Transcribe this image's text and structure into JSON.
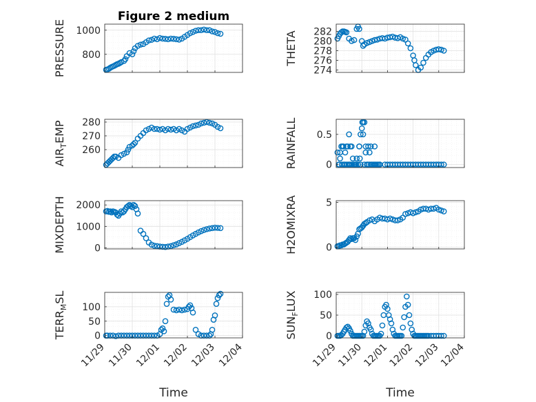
{
  "colors": {
    "marker": "#0072BD",
    "axes": "#262626",
    "grid": "#DFDFDF",
    "minorGrid": "#EDEDED"
  },
  "chart_data": [
    {
      "id": "pressure",
      "type": "scatter",
      "title": "Figure 2 medium",
      "ylabel": "PRESSURE",
      "xlabel": "",
      "xlim": [
        0,
        5
      ],
      "ylim": [
        650,
        1050
      ],
      "yticks": [
        800,
        1000
      ],
      "yticklabels": [
        "800",
        "1000"
      ],
      "xticks": [
        0,
        1,
        2,
        3,
        4,
        5
      ],
      "xticklabels": [],
      "x": [
        0.05,
        0.1,
        0.15,
        0.2,
        0.25,
        0.3,
        0.35,
        0.4,
        0.45,
        0.5,
        0.55,
        0.6,
        0.7,
        0.75,
        0.8,
        0.9,
        1.0,
        1.05,
        1.1,
        1.2,
        1.3,
        1.4,
        1.5,
        1.6,
        1.7,
        1.8,
        1.9,
        2.0,
        2.1,
        2.2,
        2.3,
        2.4,
        2.5,
        2.6,
        2.7,
        2.8,
        2.9,
        3.0,
        3.1,
        3.2,
        3.3,
        3.4,
        3.5,
        3.6,
        3.7,
        3.8,
        3.9,
        4.0,
        4.1,
        4.2
      ],
      "y": [
        672,
        675,
        680,
        688,
        695,
        700,
        705,
        712,
        718,
        722,
        728,
        735,
        745,
        760,
        785,
        810,
        800,
        825,
        850,
        870,
        880,
        885,
        900,
        915,
        920,
        930,
        925,
        935,
        930,
        928,
        925,
        930,
        928,
        925,
        922,
        930,
        945,
        960,
        975,
        985,
        995,
        1000,
        1000,
        1005,
        1000,
        1000,
        990,
        985,
        975,
        970
      ]
    },
    {
      "id": "theta",
      "type": "scatter",
      "title": "",
      "ylabel": "THETA",
      "xlabel": "",
      "xlim": [
        0,
        5
      ],
      "ylim": [
        273.5,
        283.5
      ],
      "yticks": [
        274,
        276,
        278,
        280,
        282
      ],
      "yticklabels": [
        "274",
        "276",
        "278",
        "280",
        "282"
      ],
      "xticks": [
        0,
        1,
        2,
        3,
        4,
        5
      ],
      "xticklabels": [],
      "x": [
        0.05,
        0.1,
        0.15,
        0.2,
        0.25,
        0.3,
        0.35,
        0.4,
        0.5,
        0.6,
        0.7,
        0.8,
        0.85,
        0.9,
        1.0,
        1.05,
        1.1,
        1.2,
        1.3,
        1.4,
        1.5,
        1.6,
        1.7,
        1.8,
        1.9,
        2.0,
        2.1,
        2.2,
        2.3,
        2.4,
        2.5,
        2.6,
        2.7,
        2.8,
        2.9,
        3.0,
        3.05,
        3.1,
        3.2,
        3.3,
        3.4,
        3.5,
        3.6,
        3.7,
        3.8,
        3.9,
        4.0,
        4.1,
        4.2
      ],
      "y": [
        280.5,
        281,
        281.5,
        281.8,
        282,
        282,
        281.9,
        281.8,
        280.5,
        280,
        280.2,
        282.5,
        283,
        282.5,
        280,
        279,
        279.3,
        279.6,
        279.8,
        280,
        280.2,
        280.3,
        280.5,
        280.6,
        280.5,
        280.7,
        280.8,
        280.9,
        280.7,
        280.6,
        280.8,
        280.5,
        280.3,
        279.5,
        278.5,
        277,
        276,
        275,
        274,
        274.5,
        275.5,
        276.5,
        277.2,
        277.7,
        278,
        278.2,
        278.3,
        278.2,
        278
      ]
    },
    {
      "id": "airtemp",
      "type": "scatter",
      "title": "",
      "ylabel": "AIR",
      "ylabel_sub": "T",
      "ylabel_tail": "EMP",
      "xlabel": "",
      "xlim": [
        0,
        5
      ],
      "ylim": [
        247,
        282
      ],
      "yticks": [
        260,
        270,
        280
      ],
      "yticklabels": [
        "260",
        "270",
        "280"
      ],
      "xticks": [
        0,
        1,
        2,
        3,
        4,
        5
      ],
      "xticklabels": [],
      "x": [
        0.05,
        0.1,
        0.15,
        0.2,
        0.25,
        0.3,
        0.35,
        0.4,
        0.5,
        0.6,
        0.7,
        0.8,
        0.85,
        0.9,
        1.0,
        1.05,
        1.1,
        1.2,
        1.3,
        1.4,
        1.5,
        1.6,
        1.7,
        1.8,
        1.9,
        2.0,
        2.1,
        2.2,
        2.3,
        2.4,
        2.5,
        2.6,
        2.7,
        2.8,
        2.9,
        3.0,
        3.1,
        3.2,
        3.3,
        3.4,
        3.5,
        3.6,
        3.7,
        3.8,
        3.9,
        4.0,
        4.1,
        4.2
      ],
      "y": [
        249,
        250,
        251,
        252,
        253,
        254,
        255,
        255,
        254,
        256,
        257,
        258,
        260,
        262,
        263,
        264,
        265,
        268,
        270,
        272,
        274,
        275,
        276,
        275,
        275,
        274.5,
        275,
        274,
        275,
        274.5,
        275,
        274,
        275,
        274,
        273,
        275,
        276,
        277,
        277.5,
        278,
        279,
        279.5,
        280,
        279.5,
        279,
        278,
        276.5,
        275.5
      ]
    },
    {
      "id": "rainfall",
      "type": "scatter",
      "title": "",
      "ylabel": "RAINFALL",
      "xlabel": "",
      "xlim": [
        0,
        5
      ],
      "ylim": [
        -0.05,
        0.75
      ],
      "yticks": [
        0,
        0.5
      ],
      "yticklabels": [
        "0",
        "0.5"
      ],
      "xticks": [
        0,
        1,
        2,
        3,
        4,
        5
      ],
      "xticklabels": [],
      "x": [
        0.05,
        0.1,
        0.15,
        0.2,
        0.25,
        0.3,
        0.35,
        0.4,
        0.45,
        0.5,
        0.55,
        0.6,
        0.65,
        0.7,
        0.75,
        0.8,
        0.85,
        0.9,
        0.95,
        1.0,
        1.05,
        1.1,
        1.15,
        1.2,
        1.25,
        1.3,
        1.35,
        1.4,
        1.45,
        1.5,
        1.55,
        1.6,
        1.65,
        1.7,
        0.12,
        0.15,
        0.22,
        0.28,
        0.3,
        0.35,
        0.42,
        0.48,
        0.52,
        0.55,
        0.62,
        0.68,
        0.72,
        0.78,
        0.85,
        0.9,
        0.92,
        0.95,
        1.02,
        1.05,
        1.1,
        1.15,
        1.22,
        1.28,
        1.35,
        1.5,
        1.7,
        1.9,
        2.0,
        2.1,
        2.2,
        2.3,
        2.4,
        2.5,
        2.6,
        2.7,
        2.8,
        2.9,
        3.0,
        3.1,
        3.2,
        3.3,
        3.4,
        3.5,
        3.6,
        3.7,
        3.8,
        3.9,
        4.0,
        4.1,
        4.2
      ],
      "y": [
        0.2,
        0,
        0.2,
        0.3,
        0.3,
        0,
        0.2,
        0.3,
        0.3,
        0.5,
        0.3,
        0.3,
        0.1,
        0,
        0,
        0.1,
        0,
        0.3,
        0.5,
        0.6,
        0.7,
        0.7,
        0.3,
        0,
        0.3,
        0.2,
        0.3,
        0,
        0,
        0.3,
        0,
        0,
        0,
        0,
        0,
        0.1,
        0,
        0.3,
        0,
        0,
        0,
        0,
        0,
        0,
        0,
        0,
        0,
        0,
        0,
        0.3,
        0.1,
        0,
        0.7,
        0.5,
        0,
        0.2,
        0,
        0,
        0,
        0,
        0,
        0,
        0,
        0,
        0,
        0,
        0,
        0,
        0,
        0,
        0,
        0,
        0,
        0,
        0,
        0,
        0,
        0,
        0,
        0,
        0,
        0,
        0,
        0,
        0
      ]
    },
    {
      "id": "mixdepth",
      "type": "scatter",
      "title": "",
      "ylabel": "MIXDEPTH",
      "xlabel": "",
      "xlim": [
        0,
        5
      ],
      "ylim": [
        -50,
        2200
      ],
      "yticks": [
        0,
        1000,
        2000
      ],
      "yticklabels": [
        "0",
        "1000",
        "2000"
      ],
      "xticks": [
        0,
        1,
        2,
        3,
        4,
        5
      ],
      "xticklabels": [],
      "x": [
        0.05,
        0.1,
        0.15,
        0.2,
        0.25,
        0.3,
        0.35,
        0.4,
        0.45,
        0.5,
        0.55,
        0.6,
        0.65,
        0.7,
        0.75,
        0.8,
        0.85,
        0.9,
        0.95,
        1.0,
        1.05,
        1.1,
        1.15,
        1.2,
        1.3,
        1.4,
        1.5,
        1.6,
        1.7,
        1.8,
        1.9,
        2.0,
        2.1,
        2.2,
        2.3,
        2.4,
        2.5,
        2.6,
        2.7,
        2.8,
        2.9,
        3.0,
        3.1,
        3.2,
        3.3,
        3.4,
        3.5,
        3.6,
        3.7,
        3.8,
        3.9,
        4.0,
        4.1,
        4.2
      ],
      "y": [
        1700,
        1720,
        1680,
        1700,
        1650,
        1700,
        1680,
        1650,
        1550,
        1500,
        1600,
        1700,
        1650,
        1700,
        1800,
        1900,
        1950,
        2000,
        1950,
        1900,
        2000,
        1950,
        1800,
        1600,
        800,
        650,
        450,
        250,
        150,
        100,
        80,
        60,
        50,
        40,
        60,
        80,
        120,
        160,
        220,
        280,
        350,
        420,
        500,
        580,
        650,
        720,
        780,
        830,
        870,
        900,
        920,
        940,
        930,
        920
      ]
    },
    {
      "id": "h2omixra",
      "type": "scatter",
      "title": "",
      "ylabel": "H2OMIXRA",
      "xlabel": "",
      "xlim": [
        0,
        5
      ],
      "ylim": [
        -0.2,
        5.2
      ],
      "yticks": [
        0,
        5
      ],
      "yticklabels": [
        "0",
        "5"
      ],
      "xticks": [
        0,
        1,
        2,
        3,
        4,
        5
      ],
      "xticklabels": [],
      "x": [
        0.05,
        0.1,
        0.15,
        0.2,
        0.25,
        0.3,
        0.35,
        0.4,
        0.45,
        0.5,
        0.55,
        0.6,
        0.65,
        0.7,
        0.75,
        0.8,
        0.85,
        0.9,
        0.95,
        1.0,
        1.05,
        1.1,
        1.15,
        1.2,
        1.3,
        1.4,
        1.5,
        1.6,
        1.7,
        1.8,
        1.9,
        2.0,
        2.1,
        2.2,
        2.3,
        2.4,
        2.5,
        2.6,
        2.7,
        2.8,
        2.9,
        3.0,
        3.1,
        3.2,
        3.3,
        3.4,
        3.5,
        3.6,
        3.7,
        3.8,
        3.9,
        4.0,
        4.1,
        4.2
      ],
      "y": [
        0.1,
        0.1,
        0.2,
        0.2,
        0.3,
        0.3,
        0.4,
        0.5,
        0.6,
        0.8,
        1.0,
        0.9,
        1.0,
        1.0,
        0.8,
        1.2,
        1.5,
        2.0,
        2.1,
        2.2,
        2.4,
        2.6,
        2.7,
        2.8,
        3.0,
        3.1,
        2.9,
        3.1,
        3.3,
        3.2,
        3.2,
        3.1,
        3.2,
        3.1,
        3.0,
        3.0,
        3.1,
        3.3,
        3.7,
        3.8,
        3.9,
        3.8,
        3.9,
        4.0,
        4.2,
        4.3,
        4.3,
        4.2,
        4.3,
        4.3,
        4.4,
        4.2,
        4.1,
        4.0
      ]
    },
    {
      "id": "terrmsl",
      "type": "scatter",
      "title": "",
      "ylabel": "TERR",
      "ylabel_sub": "M",
      "ylabel_tail": "SL",
      "xlabel": "Time",
      "xlim": [
        0,
        5
      ],
      "ylim": [
        -8,
        150
      ],
      "yticks": [
        0,
        50,
        100
      ],
      "yticklabels": [
        "0",
        "50",
        "100"
      ],
      "xticks": [
        0,
        1,
        2,
        3,
        4,
        5
      ],
      "xticklabels": [
        "11/29",
        "11/30",
        "12/01",
        "12/02",
        "12/03",
        "12/04"
      ],
      "x": [
        0.05,
        0.1,
        0.2,
        0.3,
        0.4,
        0.5,
        0.6,
        0.7,
        0.8,
        0.9,
        1.0,
        1.1,
        1.2,
        1.3,
        1.4,
        1.5,
        1.6,
        1.7,
        1.8,
        1.9,
        2.0,
        2.05,
        2.1,
        2.15,
        2.2,
        2.25,
        2.3,
        2.35,
        2.4,
        2.5,
        2.6,
        2.7,
        2.8,
        2.9,
        3.0,
        3.05,
        3.1,
        3.15,
        3.2,
        3.3,
        3.4,
        3.5,
        3.6,
        3.7,
        3.8,
        3.85,
        3.9,
        3.95,
        4.0,
        4.05,
        4.1,
        4.15,
        4.2
      ],
      "y": [
        0,
        0,
        0,
        0,
        -2,
        0,
        0,
        0,
        0,
        0,
        0,
        0,
        0,
        0,
        0,
        0,
        0,
        0,
        0,
        0,
        5,
        20,
        25,
        15,
        50,
        110,
        135,
        140,
        125,
        90,
        88,
        90,
        88,
        90,
        92,
        100,
        105,
        95,
        80,
        20,
        5,
        0,
        0,
        0,
        0,
        5,
        20,
        55,
        70,
        110,
        130,
        140,
        145
      ]
    },
    {
      "id": "sunflux",
      "type": "scatter",
      "title": "",
      "ylabel": "SUN",
      "ylabel_sub": "F",
      "ylabel_tail": "LUX",
      "xlabel": "Time",
      "xlim": [
        0,
        5
      ],
      "ylim": [
        -5,
        105
      ],
      "yticks": [
        0,
        50,
        100
      ],
      "yticklabels": [
        "0",
        "50",
        "100"
      ],
      "xticks": [
        0,
        1,
        2,
        3,
        4,
        5
      ],
      "xticklabels": [
        "11/29",
        "11/30",
        "12/01",
        "12/02",
        "12/03",
        "12/04"
      ],
      "x": [
        0.05,
        0.1,
        0.15,
        0.2,
        0.25,
        0.3,
        0.35,
        0.4,
        0.45,
        0.5,
        0.55,
        0.6,
        0.65,
        0.7,
        0.75,
        0.8,
        0.85,
        0.9,
        0.95,
        1.0,
        1.05,
        1.1,
        1.15,
        1.2,
        1.25,
        1.3,
        1.35,
        1.4,
        1.45,
        1.5,
        1.55,
        1.6,
        1.65,
        1.7,
        1.75,
        1.8,
        1.85,
        1.9,
        1.95,
        2.0,
        2.05,
        2.1,
        2.15,
        2.2,
        2.25,
        2.3,
        2.35,
        2.4,
        2.45,
        2.5,
        2.55,
        2.6,
        2.65,
        2.7,
        2.75,
        2.8,
        2.85,
        2.9,
        2.95,
        3.0,
        3.05,
        3.1,
        3.15,
        3.2,
        3.25,
        3.3,
        3.35,
        3.4,
        3.45,
        3.5,
        3.55,
        3.6,
        3.7,
        3.8,
        3.9,
        4.0,
        4.1,
        4.2
      ],
      "y": [
        0,
        0,
        0,
        2,
        5,
        10,
        15,
        20,
        22,
        18,
        12,
        5,
        0,
        0,
        0,
        0,
        0,
        0,
        0,
        0,
        0,
        10,
        25,
        35,
        30,
        20,
        15,
        5,
        0,
        0,
        0,
        0,
        0,
        0,
        5,
        25,
        50,
        70,
        75,
        65,
        50,
        40,
        30,
        15,
        5,
        0,
        0,
        0,
        0,
        0,
        0,
        20,
        45,
        70,
        95,
        75,
        50,
        30,
        15,
        5,
        0,
        0,
        0,
        0,
        0,
        0,
        0,
        0,
        0,
        0,
        0,
        0,
        0,
        0,
        0,
        0,
        0,
        0
      ]
    }
  ]
}
